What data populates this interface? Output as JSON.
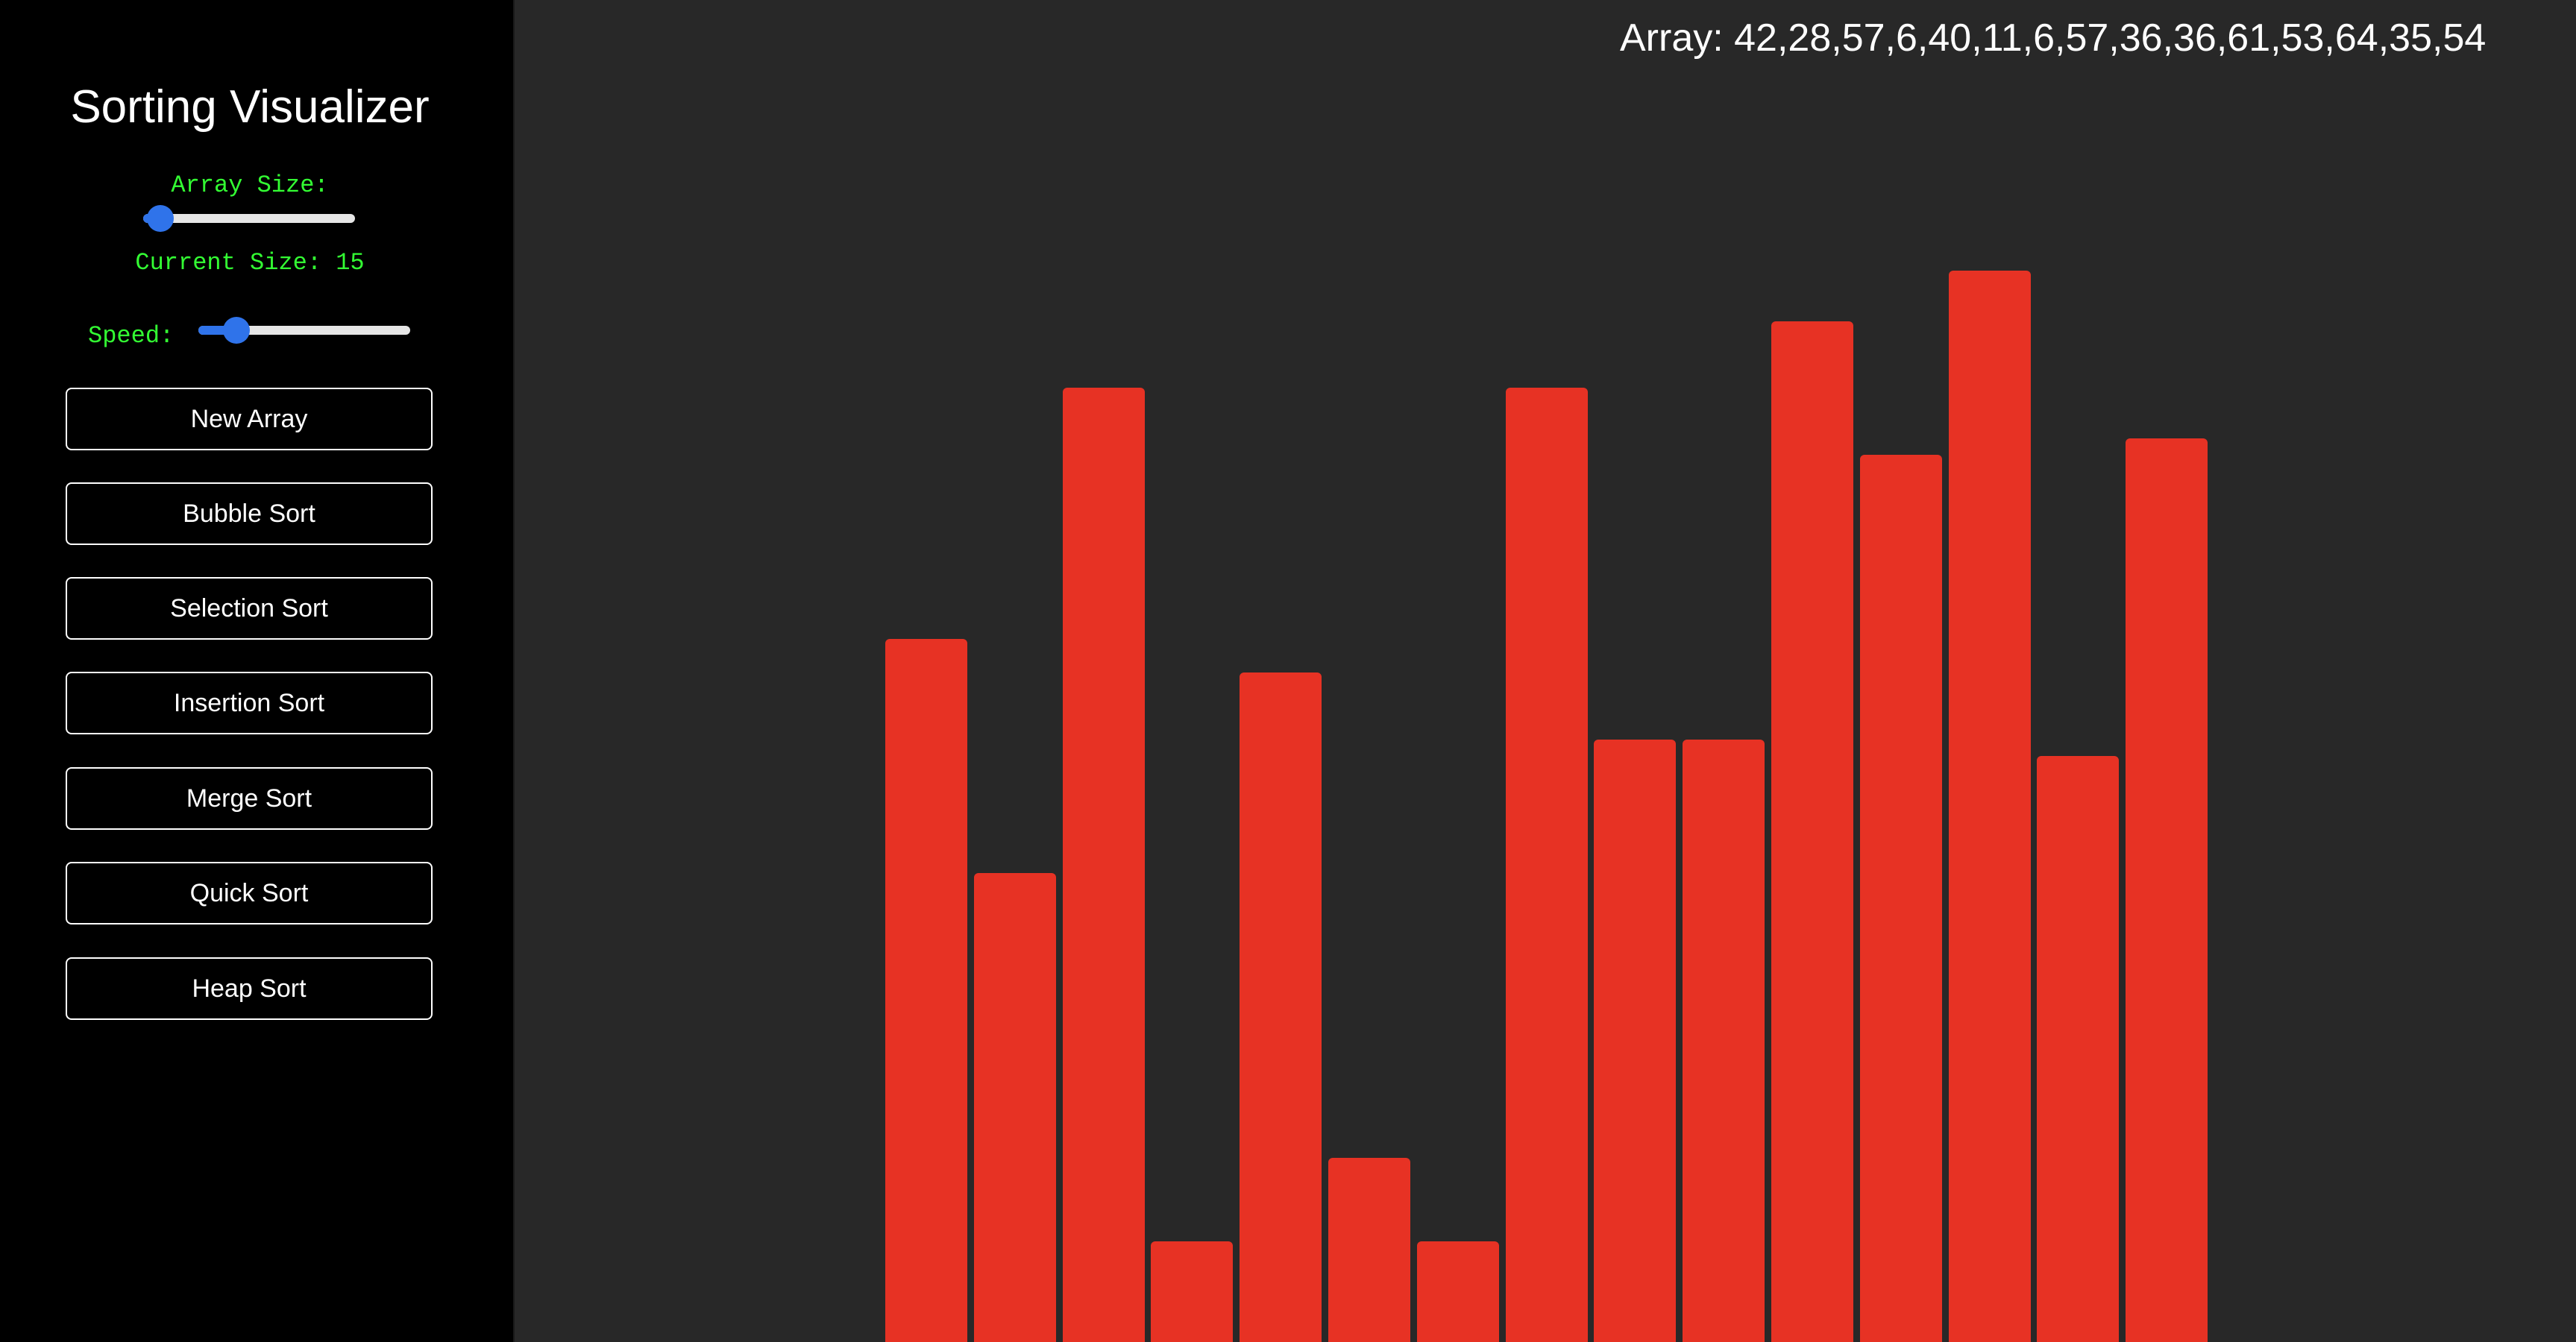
{
  "sidebar": {
    "title": "Sorting Visualizer",
    "array_size_label": "Array Size:",
    "array_size_value": 15,
    "array_size_fraction": 0.08,
    "current_size_label": "Current Size: 15",
    "speed_label": "Speed:",
    "speed_fraction": 0.18,
    "buttons": [
      "New Array",
      "Bubble Sort",
      "Selection Sort",
      "Insertion Sort",
      "Merge Sort",
      "Quick Sort",
      "Heap Sort"
    ]
  },
  "main": {
    "array_text": "Array: 42,28,57,6,40,11,6,57,36,36,61,53,64,35,54"
  },
  "chart_data": {
    "type": "bar",
    "values": [
      42,
      28,
      57,
      6,
      40,
      11,
      6,
      57,
      36,
      36,
      61,
      53,
      64,
      35,
      54
    ],
    "bar_color": "#e73224"
  },
  "colors": {
    "sidebar_bg": "#000000",
    "main_bg": "#282828",
    "label_green": "#33ff33",
    "slider_blue": "#2f73ea",
    "bar_red": "#e73224"
  }
}
